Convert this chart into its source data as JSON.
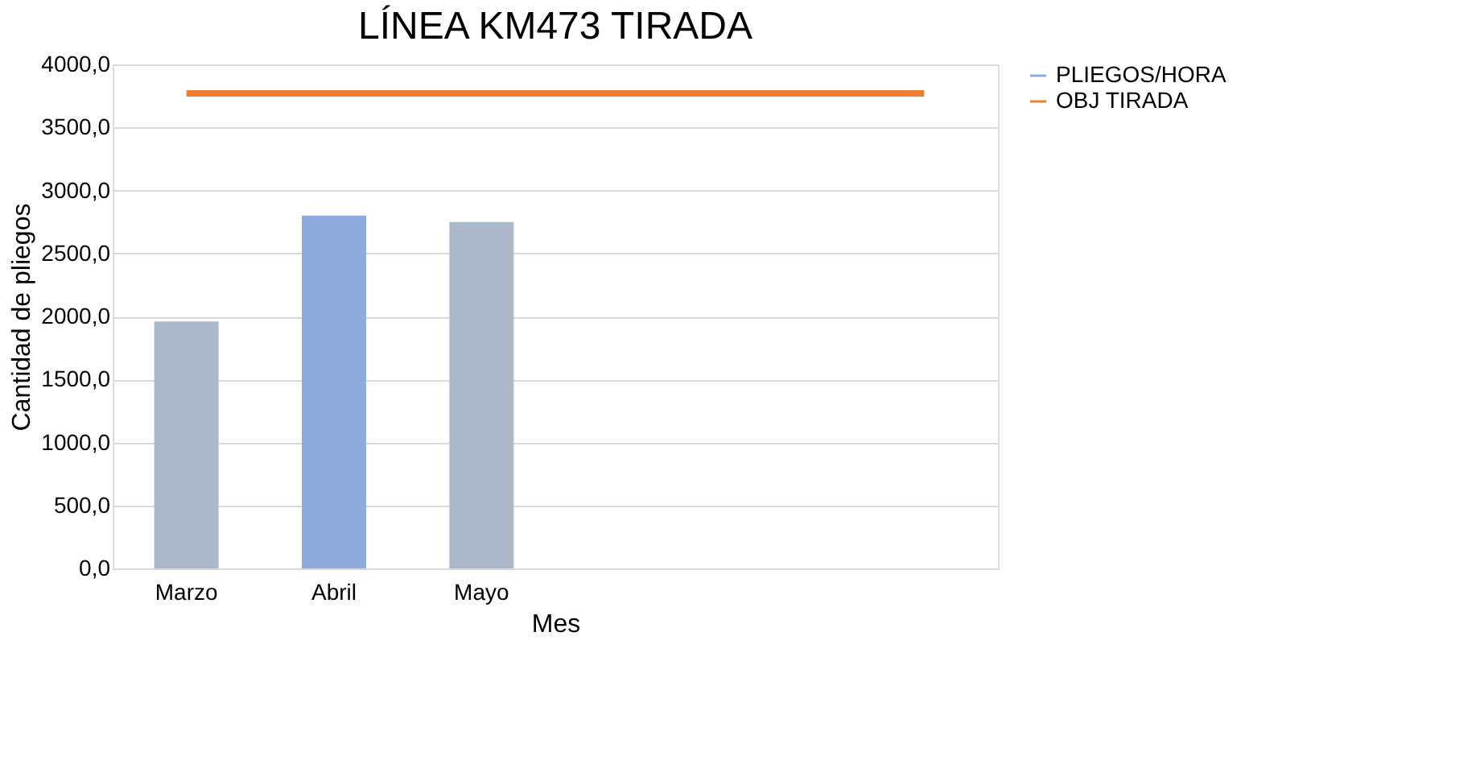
{
  "chart_data": {
    "type": "bar",
    "title": "LÍNEA KM473 TIRADA",
    "xlabel": "Mes",
    "ylabel": "Cantidad de pliegos",
    "categories": [
      "Marzo",
      "Abril",
      "Mayo",
      null,
      null,
      null
    ],
    "series": [
      {
        "name": "PLIEGOS/HORA",
        "color": "#8faadc",
        "colors": [
          "#adb9ca",
          "#8faadc",
          "#adb9ca",
          null,
          null,
          null
        ],
        "values": [
          1960,
          2800,
          2750,
          null,
          null,
          null
        ]
      },
      {
        "name": "OBJ TIRADA",
        "type": "line",
        "color": "#ed7d31",
        "values": [
          3770,
          3770,
          3770,
          3770,
          3770,
          3770
        ]
      }
    ],
    "ylim": [
      0,
      4000
    ],
    "yticks": [
      {
        "value": 0,
        "label": "0,0"
      },
      {
        "value": 500,
        "label": "500,0"
      },
      {
        "value": 1000,
        "label": "1000,0"
      },
      {
        "value": 1500,
        "label": "1500,0"
      },
      {
        "value": 2000,
        "label": "2000,0"
      },
      {
        "value": 2500,
        "label": "2500,0"
      },
      {
        "value": 3000,
        "label": "3000,0"
      },
      {
        "value": 3500,
        "label": "3500,0"
      },
      {
        "value": 4000,
        "label": "4000,0"
      }
    ],
    "grid": "y",
    "legend": "right",
    "marker": "none",
    "line_style": "solid"
  }
}
